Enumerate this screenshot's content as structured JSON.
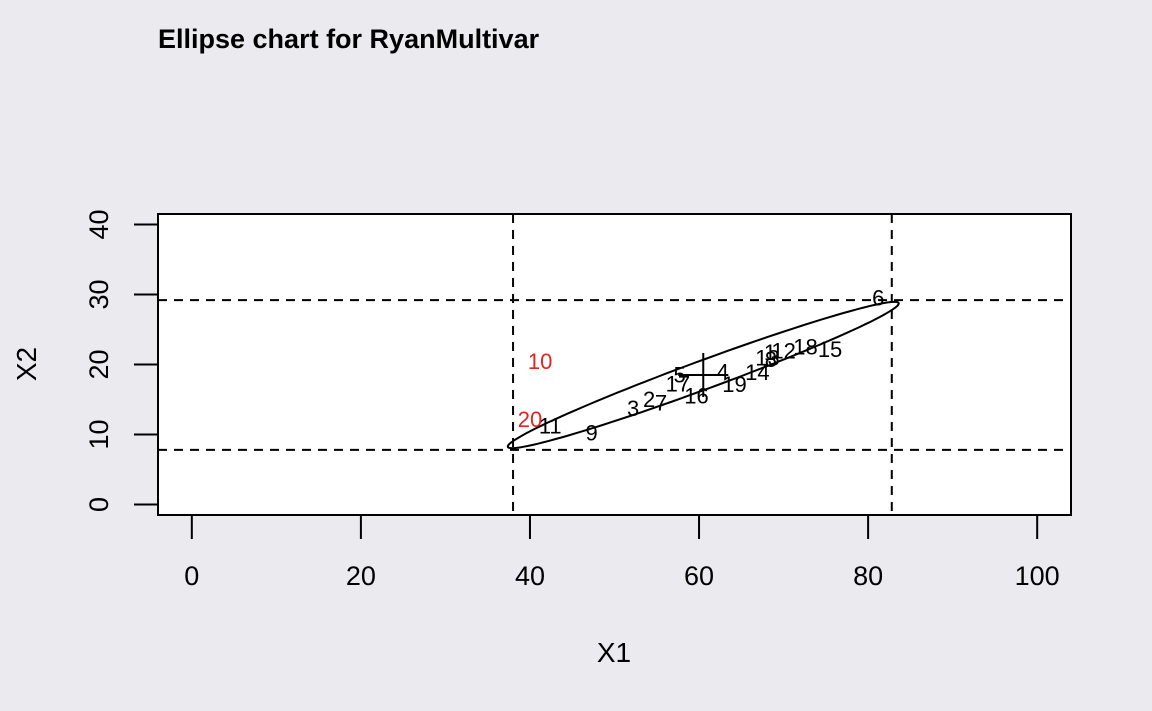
{
  "chart_data": {
    "type": "scatter",
    "title": "Ellipse chart for RyanMultivar",
    "xlabel": "X1",
    "ylabel": "X2",
    "xlim": [
      -4,
      104
    ],
    "ylim": [
      -1.5,
      41.5
    ],
    "xticks": [
      "0",
      "20",
      "40",
      "60",
      "80",
      "100"
    ],
    "yticks": [
      "0",
      "10",
      "20",
      "30",
      "40"
    ],
    "grid": false,
    "reference_lines": {
      "x": [
        38,
        82.8
      ],
      "y": [
        7.8,
        29.2
      ]
    },
    "center": [
      60.5,
      18.5
    ],
    "ellipse": {
      "cx": 60.5,
      "cy": 18.5,
      "rx": 25.3,
      "ry": 2.0,
      "angle_deg": 24
    },
    "points": [
      {
        "label": "3",
        "x": 52.2,
        "y": 13.8,
        "color": "#000000"
      },
      {
        "label": "2",
        "x": 54.1,
        "y": 15.1,
        "color": "#000000"
      },
      {
        "label": "7",
        "x": 55.5,
        "y": 14.6,
        "color": "#000000"
      },
      {
        "label": "17",
        "x": 57.5,
        "y": 17.3,
        "color": "#000000"
      },
      {
        "label": "5",
        "x": 57.7,
        "y": 18.6,
        "color": "#000000"
      },
      {
        "label": "16",
        "x": 59.7,
        "y": 15.6,
        "color": "#000000"
      },
      {
        "label": "4",
        "x": 62.8,
        "y": 19.0,
        "color": "#000000"
      },
      {
        "label": "19",
        "x": 64.2,
        "y": 17.2,
        "color": "#000000"
      },
      {
        "label": "14",
        "x": 66.9,
        "y": 18.9,
        "color": "#000000"
      },
      {
        "label": "13",
        "x": 68.1,
        "y": 21.0,
        "color": "#000000"
      },
      {
        "label": "8",
        "x": 68.5,
        "y": 20.8,
        "color": "#000000"
      },
      {
        "label": "1",
        "x": 68.4,
        "y": 21.8,
        "color": "#000000"
      },
      {
        "label": "12",
        "x": 70.0,
        "y": 22.0,
        "color": "#000000"
      },
      {
        "label": "18",
        "x": 72.6,
        "y": 22.6,
        "color": "#000000"
      },
      {
        "label": "15",
        "x": 75.5,
        "y": 22.2,
        "color": "#000000"
      },
      {
        "label": "6",
        "x": 81.2,
        "y": 29.6,
        "color": "#000000"
      },
      {
        "label": "11",
        "x": 42.4,
        "y": 11.3,
        "color": "#000000"
      },
      {
        "label": "9",
        "x": 47.3,
        "y": 10.3,
        "color": "#000000"
      },
      {
        "label": "10",
        "x": 41.2,
        "y": 20.5,
        "color": "#e8221e"
      },
      {
        "label": "20",
        "x": 40.0,
        "y": 12.2,
        "color": "#e8221e"
      }
    ]
  }
}
